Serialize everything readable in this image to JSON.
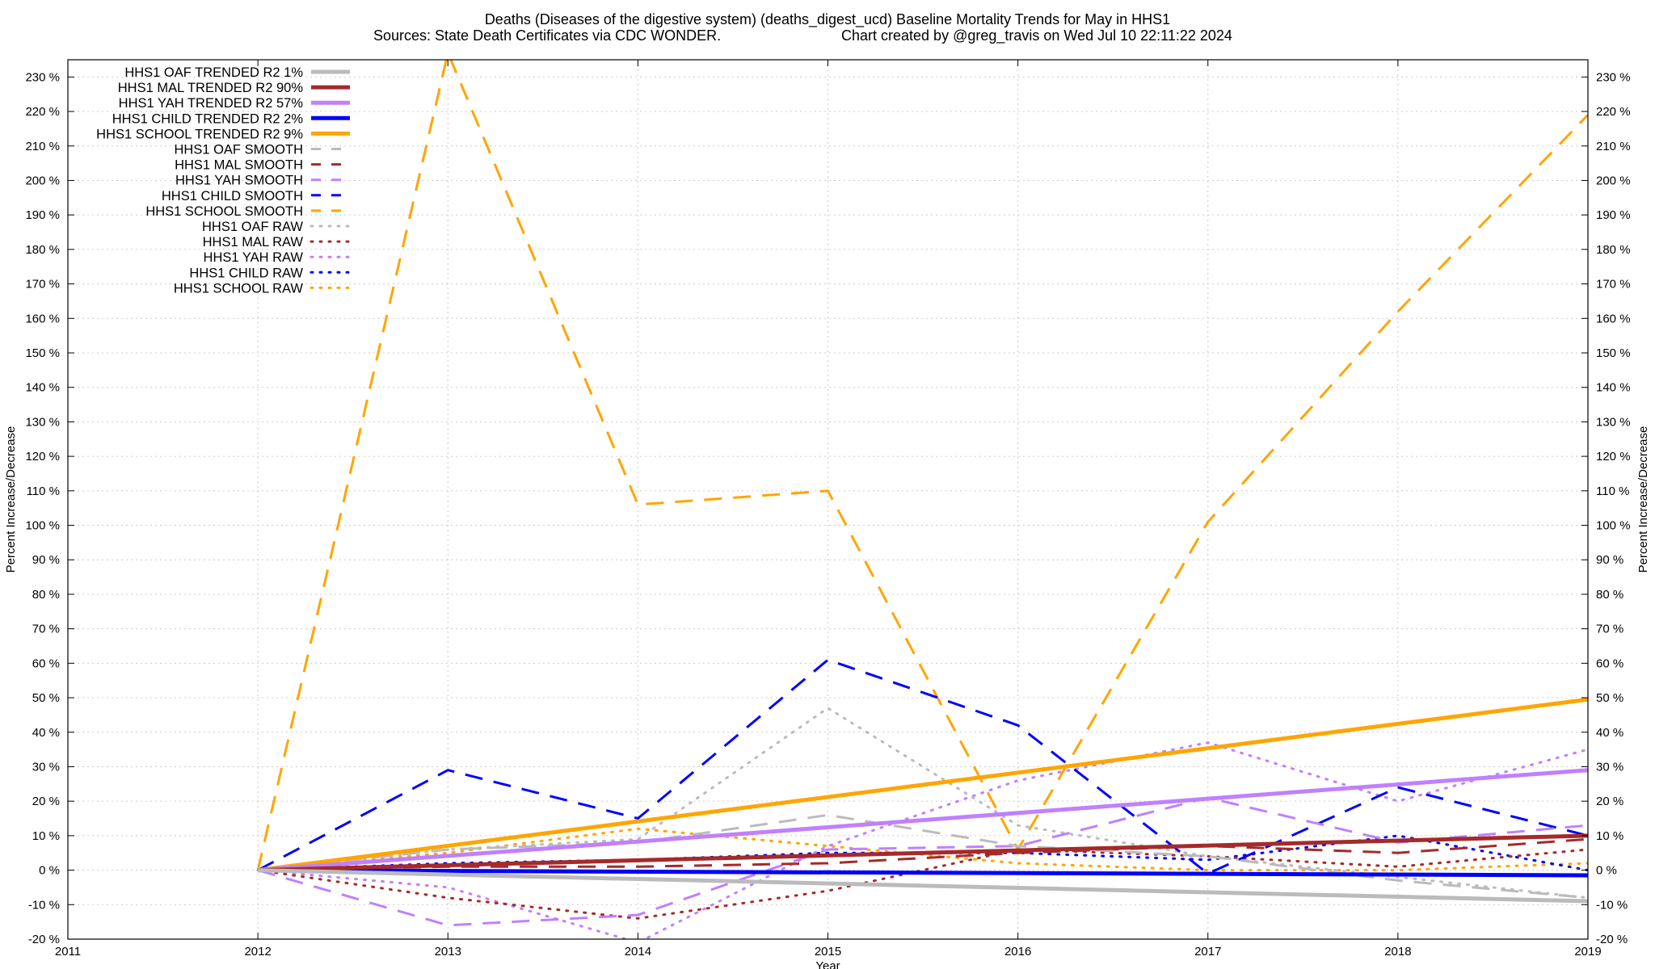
{
  "title_line1": "Deaths (Diseases of the digestive system) (deaths_digest_ucd)  Baseline Mortality Trends for May in HHS1",
  "title_line2_left": "Sources: State Death Certificates via CDC WONDER.",
  "title_line2_right": "Chart created by @greg_travis on Wed Jul 10 22:11:22 2024",
  "chart_data": {
    "type": "line",
    "xlabel": "Year",
    "ylabel": "Percent Increase/Decrease",
    "ylabel_right": "Percent Increase/Decrease",
    "xlim": [
      2011,
      2019
    ],
    "ylim": [
      -20,
      235
    ],
    "x_ticks": [
      2011,
      2012,
      2013,
      2014,
      2015,
      2016,
      2017,
      2018,
      2019
    ],
    "y_ticks": [
      -20,
      -10,
      0,
      10,
      20,
      30,
      40,
      50,
      60,
      70,
      80,
      90,
      100,
      110,
      120,
      130,
      140,
      150,
      160,
      170,
      180,
      190,
      200,
      210,
      220,
      230
    ],
    "y_tick_suffix": " %",
    "grid": true,
    "legend_position": "top-left",
    "series": [
      {
        "name": "HHS1 OAF TRENDED R2   1%",
        "style": "solid",
        "color": "#bbbbbb",
        "x": [
          2012,
          2019
        ],
        "y": [
          0,
          -9
        ]
      },
      {
        "name": "HHS1 MAL TRENDED R2  90%",
        "style": "solid",
        "color": "#a52a2a",
        "x": [
          2012,
          2019
        ],
        "y": [
          0,
          10
        ]
      },
      {
        "name": "HHS1 YAH TRENDED R2  57%",
        "style": "solid",
        "color": "#c080ff",
        "x": [
          2012,
          2019
        ],
        "y": [
          0,
          29
        ]
      },
      {
        "name": "HHS1 CHILD TRENDED R2   2%",
        "style": "solid",
        "color": "#0000ff",
        "x": [
          2012,
          2019
        ],
        "y": [
          0,
          -1.5
        ]
      },
      {
        "name": "HHS1 SCHOOL TRENDED R2   9%",
        "style": "solid",
        "color": "#ffa500",
        "x": [
          2012,
          2019
        ],
        "y": [
          0,
          49.5
        ]
      },
      {
        "name": "HHS1 OAF SMOOTH",
        "style": "dashed",
        "color": "#bbbbbb",
        "x": [
          2012,
          2013,
          2014,
          2015,
          2016,
          2017,
          2018,
          2019
        ],
        "y": [
          0,
          6,
          8,
          16,
          7,
          4,
          -3,
          -8
        ]
      },
      {
        "name": "HHS1 MAL SMOOTH",
        "style": "dashed",
        "color": "#a52a2a",
        "x": [
          2012,
          2013,
          2014,
          2015,
          2016,
          2017,
          2018,
          2019
        ],
        "y": [
          0,
          1,
          1,
          2,
          5,
          7,
          5,
          9
        ]
      },
      {
        "name": "HHS1 YAH SMOOTH",
        "style": "dashed",
        "color": "#c080ff",
        "x": [
          2012,
          2013,
          2014,
          2015,
          2016,
          2017,
          2018,
          2019
        ],
        "y": [
          0,
          -16,
          -13,
          6,
          7,
          21,
          8,
          13
        ]
      },
      {
        "name": "HHS1 CHILD SMOOTH",
        "style": "dashed",
        "color": "#0000ff",
        "x": [
          2012,
          2013,
          2014,
          2015,
          2016,
          2017,
          2018,
          2019
        ],
        "y": [
          0,
          29,
          15,
          61,
          42,
          -1,
          24,
          10
        ]
      },
      {
        "name": "HHS1 SCHOOL SMOOTH",
        "style": "dashed",
        "color": "#ffa500",
        "x": [
          2012,
          2013,
          2014,
          2015,
          2016,
          2017,
          2018,
          2019
        ],
        "y": [
          0,
          237,
          106,
          110,
          6,
          101,
          162,
          219
        ]
      },
      {
        "name": "HHS1 OAF RAW",
        "style": "dotted",
        "color": "#bbbbbb",
        "x": [
          2012,
          2013,
          2014,
          2015,
          2016,
          2017,
          2018,
          2019
        ],
        "y": [
          0,
          6,
          9,
          47,
          13,
          4,
          -2,
          -8
        ]
      },
      {
        "name": "HHS1 MAL RAW",
        "style": "dotted",
        "color": "#a52a2a",
        "x": [
          2012,
          2013,
          2014,
          2015,
          2016,
          2017,
          2018,
          2019
        ],
        "y": [
          0,
          -8,
          -14,
          -6,
          6,
          4,
          1,
          6
        ]
      },
      {
        "name": "HHS1 YAH RAW",
        "style": "dotted",
        "color": "#c080ff",
        "x": [
          2012,
          2013,
          2014,
          2015,
          2016,
          2017,
          2018,
          2019
        ],
        "y": [
          0,
          -5,
          -21,
          7,
          26,
          37,
          20,
          35
        ]
      },
      {
        "name": "HHS1 CHILD RAW",
        "style": "dotted",
        "color": "#0000ff",
        "x": [
          2012,
          2013,
          2014,
          2015,
          2016,
          2017,
          2018,
          2019
        ],
        "y": [
          0,
          2,
          3,
          5,
          5,
          3,
          10,
          0
        ]
      },
      {
        "name": "HHS1 SCHOOL RAW",
        "style": "dotted",
        "color": "#ffa500",
        "x": [
          2012,
          2013,
          2014,
          2015,
          2016,
          2017,
          2018,
          2019
        ],
        "y": [
          0,
          5,
          12,
          7,
          2,
          0,
          0,
          2
        ]
      }
    ]
  }
}
